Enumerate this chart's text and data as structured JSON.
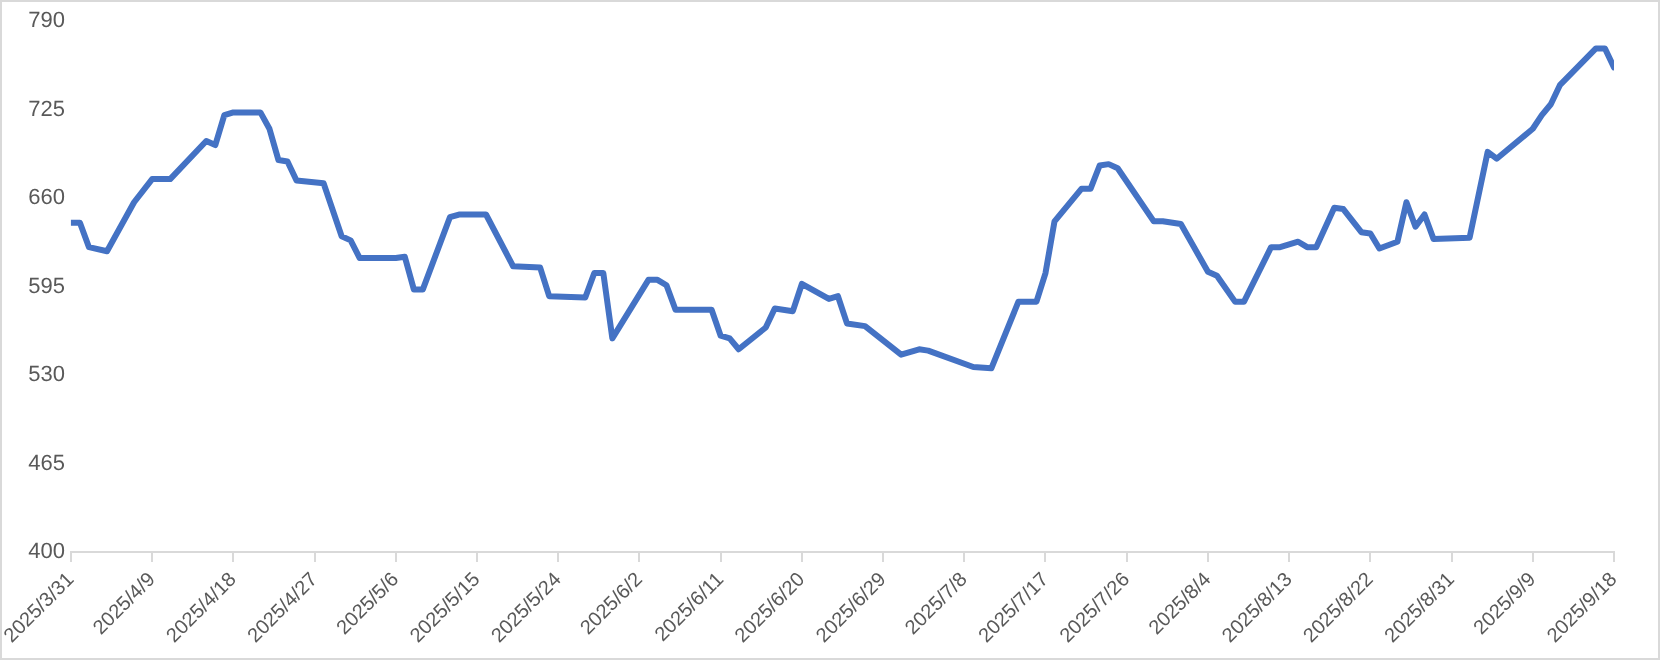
{
  "chart_data": {
    "type": "line",
    "color": "#4472c4",
    "marker": "none",
    "grid": false,
    "legend": false,
    "x": [
      "2025-03-31",
      "2025-04-01",
      "2025-04-02",
      "2025-04-04",
      "2025-04-07",
      "2025-04-09",
      "2025-04-11",
      "2025-04-15",
      "2025-04-16",
      "2025-04-17",
      "2025-04-18",
      "2025-04-21",
      "2025-04-22",
      "2025-04-23",
      "2025-04-24",
      "2025-04-25",
      "2025-04-28",
      "2025-04-30",
      "2025-05-01",
      "2025-05-02",
      "2025-05-06",
      "2025-05-07",
      "2025-05-08",
      "2025-05-09",
      "2025-05-12",
      "2025-05-13",
      "2025-05-16",
      "2025-05-19",
      "2025-05-22",
      "2025-05-23",
      "2025-05-27",
      "2025-05-28",
      "2025-05-29",
      "2025-05-30",
      "2025-06-03",
      "2025-06-04",
      "2025-06-05",
      "2025-06-06",
      "2025-06-10",
      "2025-06-11",
      "2025-06-12",
      "2025-06-13",
      "2025-06-16",
      "2025-06-17",
      "2025-06-19",
      "2025-06-20",
      "2025-06-23",
      "2025-06-24",
      "2025-06-25",
      "2025-06-27",
      "2025-07-01",
      "2025-07-03",
      "2025-07-04",
      "2025-07-09",
      "2025-07-11",
      "2025-07-14",
      "2025-07-16",
      "2025-07-17",
      "2025-07-18",
      "2025-07-21",
      "2025-07-22",
      "2025-07-23",
      "2025-07-24",
      "2025-07-25",
      "2025-07-29",
      "2025-07-30",
      "2025-08-01",
      "2025-08-04",
      "2025-08-05",
      "2025-08-07",
      "2025-08-08",
      "2025-08-11",
      "2025-08-12",
      "2025-08-14",
      "2025-08-15",
      "2025-08-16",
      "2025-08-18",
      "2025-08-19",
      "2025-08-21",
      "2025-08-22",
      "2025-08-23",
      "2025-08-25",
      "2025-08-26",
      "2025-08-27",
      "2025-08-28",
      "2025-08-29",
      "2025-09-02",
      "2025-09-04",
      "2025-09-05",
      "2025-09-09",
      "2025-09-10",
      "2025-09-11",
      "2025-09-12",
      "2025-09-16",
      "2025-09-17",
      "2025-09-18"
    ],
    "values": [
      642,
      642,
      624,
      621,
      657,
      674,
      674,
      702,
      699,
      721,
      723,
      723,
      711,
      688,
      687,
      673,
      671,
      632,
      629,
      616,
      616,
      617,
      593,
      593,
      646,
      648,
      648,
      610,
      609,
      588,
      587,
      605,
      605,
      557,
      600,
      600,
      596,
      578,
      578,
      559,
      557,
      549,
      565,
      579,
      577,
      597,
      586,
      588,
      568,
      566,
      545,
      549,
      548,
      536,
      535,
      584,
      584,
      605,
      643,
      667,
      667,
      684,
      685,
      682,
      643,
      643,
      641,
      606,
      603,
      584,
      584,
      624,
      624,
      628,
      624,
      624,
      653,
      652,
      635,
      634,
      623,
      628,
      657,
      639,
      648,
      630,
      631,
      694,
      689,
      711,
      721,
      729,
      743,
      770,
      770,
      756
    ],
    "ylim": [
      400,
      790
    ],
    "yticks": [
      400,
      465,
      530,
      595,
      660,
      725,
      790
    ],
    "xlim": [
      "2025-03-31",
      "2025-09-18"
    ],
    "xticks": [
      {
        "value": "2025-03-31",
        "label": "2025/3/31"
      },
      {
        "value": "2025-04-09",
        "label": "2025/4/9"
      },
      {
        "value": "2025-04-18",
        "label": "2025/4/18"
      },
      {
        "value": "2025-04-27",
        "label": "2025/4/27"
      },
      {
        "value": "2025-05-06",
        "label": "2025/5/6"
      },
      {
        "value": "2025-05-15",
        "label": "2025/5/15"
      },
      {
        "value": "2025-05-24",
        "label": "2025/5/24"
      },
      {
        "value": "2025-06-02",
        "label": "2025/6/2"
      },
      {
        "value": "2025-06-11",
        "label": "2025/6/11"
      },
      {
        "value": "2025-06-20",
        "label": "2025/6/20"
      },
      {
        "value": "2025-06-29",
        "label": "2025/6/29"
      },
      {
        "value": "2025-07-08",
        "label": "2025/7/8"
      },
      {
        "value": "2025-07-17",
        "label": "2025/7/17"
      },
      {
        "value": "2025-07-26",
        "label": "2025/7/26"
      },
      {
        "value": "2025-08-04",
        "label": "2025/8/4"
      },
      {
        "value": "2025-08-13",
        "label": "2025/8/13"
      },
      {
        "value": "2025-08-22",
        "label": "2025/8/22"
      },
      {
        "value": "2025-08-31",
        "label": "2025/8/31"
      },
      {
        "value": "2025-09-09",
        "label": "2025/9/9"
      },
      {
        "value": "2025-09-18",
        "label": "2025/9/18"
      }
    ]
  }
}
